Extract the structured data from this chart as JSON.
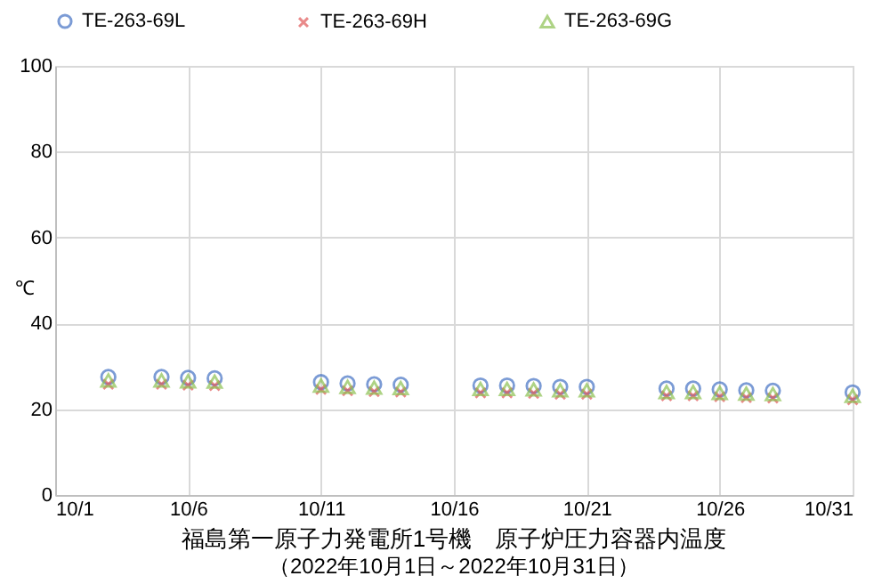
{
  "chart_data": {
    "type": "scatter",
    "title": "福島第一原子力発電所1号機　原子炉圧力容器内温度",
    "subtitle": "（2022年10月1日～2022年10月31日）",
    "ylabel": "℃",
    "x": [
      "2022-10-03",
      "2022-10-05",
      "2022-10-06",
      "2022-10-07",
      "2022-10-11",
      "2022-10-12",
      "2022-10-13",
      "2022-10-14",
      "2022-10-17",
      "2022-10-18",
      "2022-10-19",
      "2022-10-20",
      "2022-10-21",
      "2022-10-24",
      "2022-10-25",
      "2022-10-26",
      "2022-10-27",
      "2022-10-28",
      "2022-10-31"
    ],
    "series": [
      {
        "name": "TE-263-69L",
        "color": "#4472c4",
        "marker": "circle",
        "values": [
          27.5,
          27.5,
          27.3,
          27.2,
          26.3,
          26.0,
          25.8,
          25.7,
          25.5,
          25.5,
          25.4,
          25.2,
          25.2,
          24.8,
          24.8,
          24.6,
          24.4,
          24.3,
          23.9
        ]
      },
      {
        "name": "TE-263-69H",
        "color": "#e05a5a",
        "marker": "cross",
        "values": [
          25.8,
          25.8,
          25.6,
          25.5,
          24.6,
          24.3,
          24.1,
          24.0,
          23.8,
          23.8,
          23.7,
          23.5,
          23.5,
          23.1,
          23.1,
          22.9,
          22.7,
          22.6,
          22.2
        ]
      },
      {
        "name": "TE-263-69G",
        "color": "#8cc152",
        "marker": "triangle",
        "values": [
          26.7,
          26.7,
          26.5,
          26.4,
          25.5,
          25.2,
          25.0,
          24.9,
          24.7,
          24.7,
          24.6,
          24.4,
          24.4,
          24.0,
          24.0,
          23.8,
          23.6,
          23.5,
          23.1
        ]
      }
    ],
    "xlim": [
      "2022-10-01",
      "2022-10-31"
    ],
    "xticks": [
      {
        "value": "2022-10-01",
        "label": "10/1"
      },
      {
        "value": "2022-10-06",
        "label": "10/6"
      },
      {
        "value": "2022-10-11",
        "label": "10/11"
      },
      {
        "value": "2022-10-16",
        "label": "10/16"
      },
      {
        "value": "2022-10-21",
        "label": "10/21"
      },
      {
        "value": "2022-10-26",
        "label": "10/26"
      },
      {
        "value": "2022-10-31",
        "label": "10/31"
      }
    ],
    "ylim": [
      0,
      100
    ],
    "yticks": [
      0,
      20,
      40,
      60,
      80,
      100
    ],
    "grid": true,
    "legend": "top"
  }
}
